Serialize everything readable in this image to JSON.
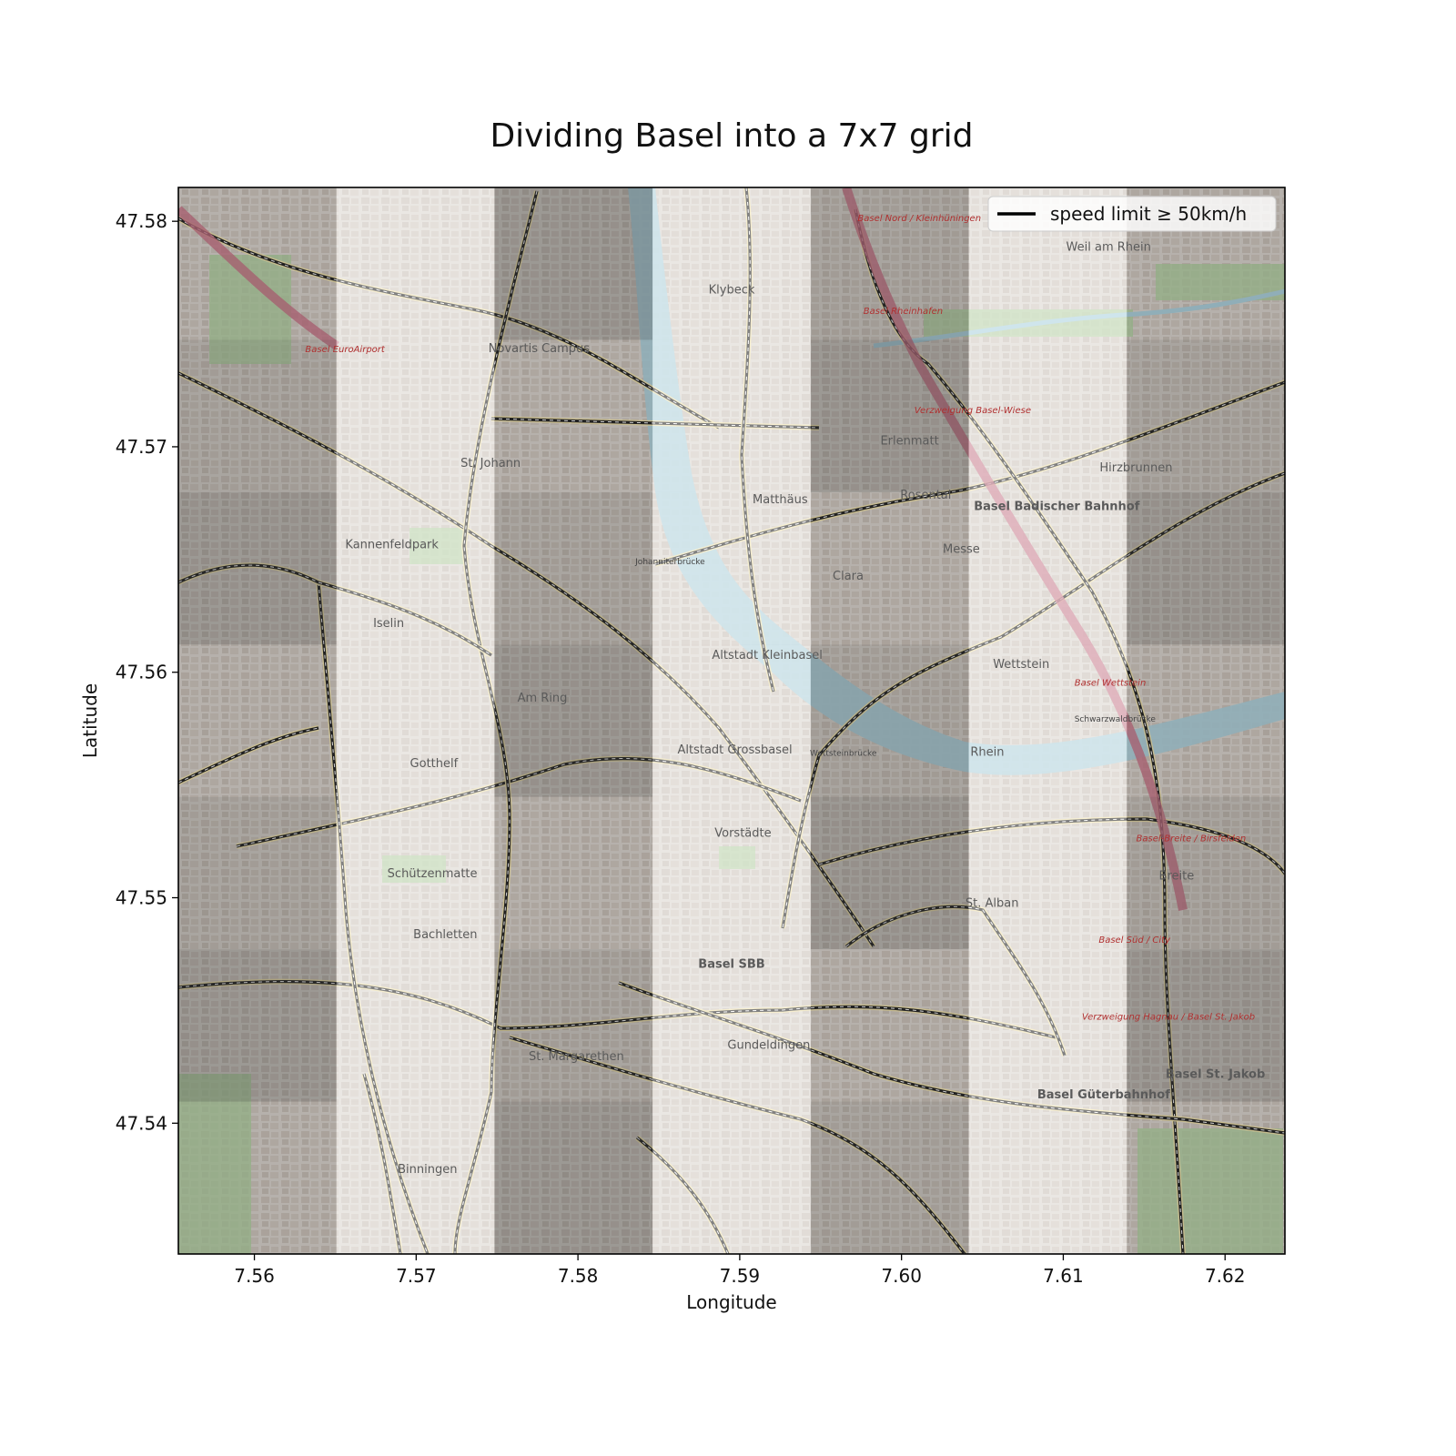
{
  "figure": {
    "title": "Dividing Basel into a 7x7 grid",
    "xlabel": "Longitude",
    "ylabel": "Latitude"
  },
  "chart_data": {
    "type": "map",
    "title": "Dividing Basel into a 7x7 grid",
    "xlabel": "Longitude",
    "ylabel": "Latitude",
    "xlim": [
      7.5553,
      7.6237
    ],
    "ylim": [
      47.5342,
      47.5815
    ],
    "xticks": [
      7.56,
      7.57,
      7.58,
      7.59,
      7.6,
      7.61,
      7.62
    ],
    "yticks": [
      47.54,
      47.55,
      47.56,
      47.57,
      47.58
    ],
    "xtick_labels": [
      "7.56",
      "7.57",
      "7.58",
      "7.59",
      "7.60",
      "7.61",
      "7.62"
    ],
    "ytick_labels": [
      "47.54",
      "47.55",
      "47.56",
      "47.57",
      "47.58"
    ],
    "grid": {
      "rows": 7,
      "cols": 7,
      "overlay": "alternating light/dark transparent cells"
    },
    "legend": {
      "placement": "top-right",
      "entries": [
        {
          "label": "speed limit ≥ 50km/h",
          "color": "#000000"
        }
      ]
    },
    "river_label": "Rhein",
    "map_labels": [
      {
        "text": "St. Johann",
        "lon": 7.5746,
        "lat": 47.5691,
        "kind": "district"
      },
      {
        "text": "Matthäus",
        "lon": 7.5925,
        "lat": 47.5675,
        "kind": "district"
      },
      {
        "text": "Erlenmatt",
        "lon": 7.6005,
        "lat": 47.5701,
        "kind": "district"
      },
      {
        "text": "Rosental",
        "lon": 7.6015,
        "lat": 47.5677,
        "kind": "district"
      },
      {
        "text": "Hirzbrunnen",
        "lon": 7.6145,
        "lat": 47.5689,
        "kind": "district"
      },
      {
        "text": "Klybeck",
        "lon": 7.5895,
        "lat": 47.5768,
        "kind": "district"
      },
      {
        "text": "Novartis Campus",
        "lon": 7.5776,
        "lat": 47.5742,
        "kind": "district"
      },
      {
        "text": "Iselin",
        "lon": 7.5683,
        "lat": 47.562,
        "kind": "district"
      },
      {
        "text": "Am Ring",
        "lon": 7.5778,
        "lat": 47.5587,
        "kind": "district"
      },
      {
        "text": "Gotthelf",
        "lon": 7.5711,
        "lat": 47.5558,
        "kind": "district"
      },
      {
        "text": "Altstadt Kleinbasel",
        "lon": 7.5917,
        "lat": 47.5606,
        "kind": "district"
      },
      {
        "text": "Altstadt Grossbasel",
        "lon": 7.5897,
        "lat": 47.5564,
        "kind": "district"
      },
      {
        "text": "Clara",
        "lon": 7.5967,
        "lat": 47.5641,
        "kind": "district"
      },
      {
        "text": "Messe",
        "lon": 7.6037,
        "lat": 47.5653,
        "kind": "district"
      },
      {
        "text": "Wettstein",
        "lon": 7.6074,
        "lat": 47.5602,
        "kind": "district"
      },
      {
        "text": "Vorstädte",
        "lon": 7.5902,
        "lat": 47.5527,
        "kind": "district"
      },
      {
        "text": "Bachletten",
        "lon": 7.5718,
        "lat": 47.5482,
        "kind": "district"
      },
      {
        "text": "St. Alban",
        "lon": 7.6056,
        "lat": 47.5496,
        "kind": "district"
      },
      {
        "text": "Gundeldingen",
        "lon": 7.5918,
        "lat": 47.5433,
        "kind": "district"
      },
      {
        "text": "Breite",
        "lon": 7.617,
        "lat": 47.5508,
        "kind": "district"
      },
      {
        "text": "Binningen",
        "lon": 7.5707,
        "lat": 47.5378,
        "kind": "district"
      },
      {
        "text": "St. Margarethen",
        "lon": 7.5799,
        "lat": 47.5428,
        "kind": "district"
      },
      {
        "text": "Kannenfeldpark",
        "lon": 7.5685,
        "lat": 47.5655,
        "kind": "park"
      },
      {
        "text": "Schützenmatte",
        "lon": 7.571,
        "lat": 47.5509,
        "kind": "park"
      },
      {
        "text": "Basel SBB",
        "lon": 7.5895,
        "lat": 47.5469,
        "kind": "station"
      },
      {
        "text": "Basel Badischer Bahnhof",
        "lon": 7.6096,
        "lat": 47.5672,
        "kind": "station"
      },
      {
        "text": "Basel St. Jakob",
        "lon": 7.6194,
        "lat": 47.542,
        "kind": "station"
      },
      {
        "text": "Basel Güterbahnhof",
        "lon": 7.6125,
        "lat": 47.5411,
        "kind": "station"
      },
      {
        "text": "Weil am Rhein",
        "lon": 7.6128,
        "lat": 47.5787,
        "kind": "district"
      },
      {
        "text": "Johanniterbrücke",
        "lon": 7.5857,
        "lat": 47.5648,
        "kind": "bridge"
      },
      {
        "text": "Wettsteinbrücke",
        "lon": 7.5964,
        "lat": 47.5563,
        "kind": "bridge"
      },
      {
        "text": "Schwarzwaldbrücke",
        "lon": 7.6132,
        "lat": 47.5578,
        "kind": "bridge"
      },
      {
        "text": "Basel Nord / Kleinhüningen",
        "lon": 7.6011,
        "lat": 47.58,
        "kind": "road-junction"
      },
      {
        "text": "Basel Rheinhafen",
        "lon": 7.6001,
        "lat": 47.5759,
        "kind": "road-junction"
      },
      {
        "text": "Verzweigung Basel-Wiese",
        "lon": 7.6044,
        "lat": 47.5715,
        "kind": "road-junction"
      },
      {
        "text": "Basel Wettstein",
        "lon": 7.6129,
        "lat": 47.5594,
        "kind": "road-junction"
      },
      {
        "text": "Basel-Breite / Birsfelden",
        "lon": 7.6179,
        "lat": 47.5525,
        "kind": "road-junction"
      },
      {
        "text": "Basel Süd / City",
        "lon": 7.6144,
        "lat": 47.548,
        "kind": "road-junction"
      },
      {
        "text": "Verzweigung Hagnau / Basel St. Jakob",
        "lon": 7.6165,
        "lat": 47.5446,
        "kind": "road-junction"
      },
      {
        "text": "Basel EuroAirport",
        "lon": 7.5656,
        "lat": 47.5742,
        "kind": "road-junction"
      }
    ]
  }
}
